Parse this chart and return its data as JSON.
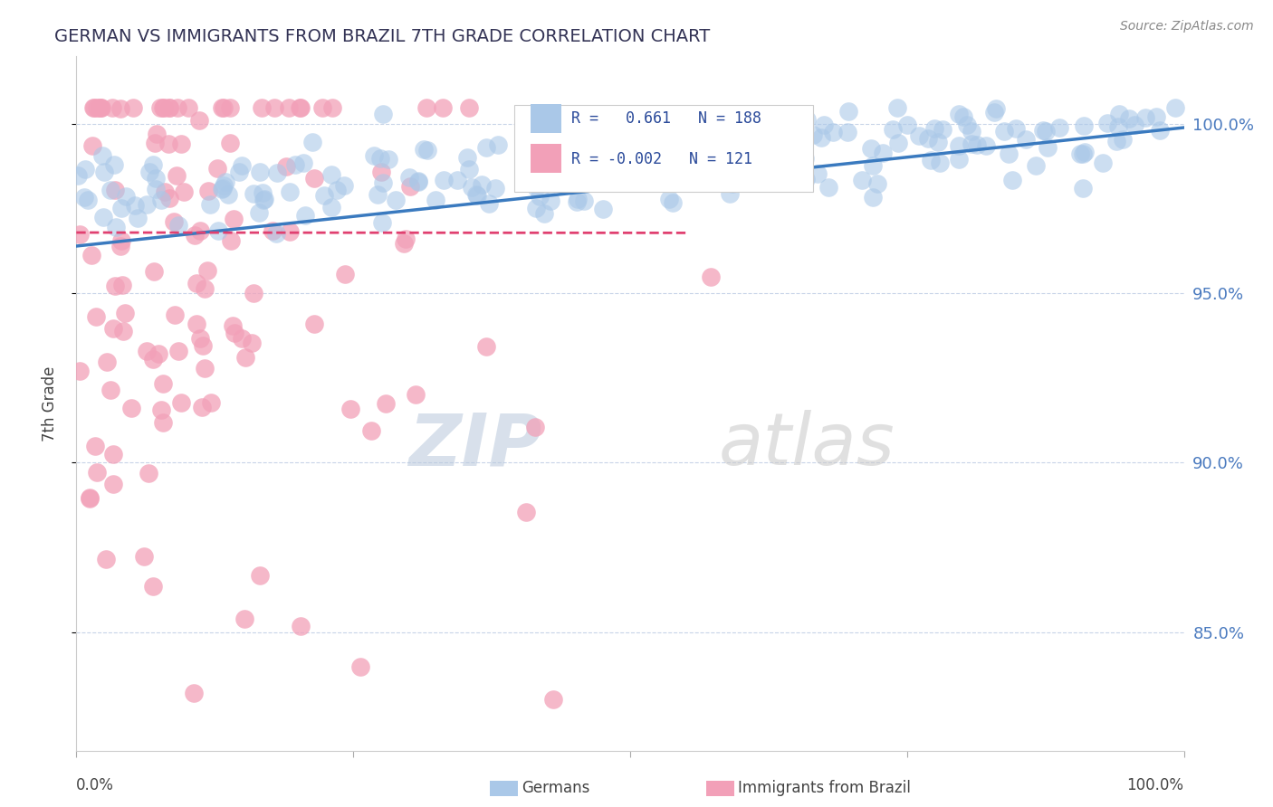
{
  "title": "GERMAN VS IMMIGRANTS FROM BRAZIL 7TH GRADE CORRELATION CHART",
  "source": "Source: ZipAtlas.com",
  "ylabel": "7th Grade",
  "y_ticks": [
    0.85,
    0.9,
    0.95,
    1.0
  ],
  "y_tick_labels": [
    "85.0%",
    "90.0%",
    "95.0%",
    "100.0%"
  ],
  "xlim": [
    0.0,
    1.0
  ],
  "ylim": [
    0.815,
    1.02
  ],
  "blue_R": 0.661,
  "blue_N": 188,
  "pink_R": -0.002,
  "pink_N": 121,
  "blue_color": "#aac8e8",
  "pink_color": "#f2a0b8",
  "blue_line_color": "#3a7abf",
  "pink_line_color": "#e04070",
  "grid_color": "#c8d4e8",
  "background_color": "#ffffff",
  "watermark_zip": "ZIP",
  "watermark_atlas": "atlas",
  "legend_blue_label": "Germans",
  "legend_pink_label": "Immigrants from Brazil",
  "blue_line_y_start": 0.964,
  "blue_line_y_end": 0.999,
  "pink_line_y": 0.968,
  "pink_line_x_end": 0.55,
  "tick_color": "#4a7abf"
}
